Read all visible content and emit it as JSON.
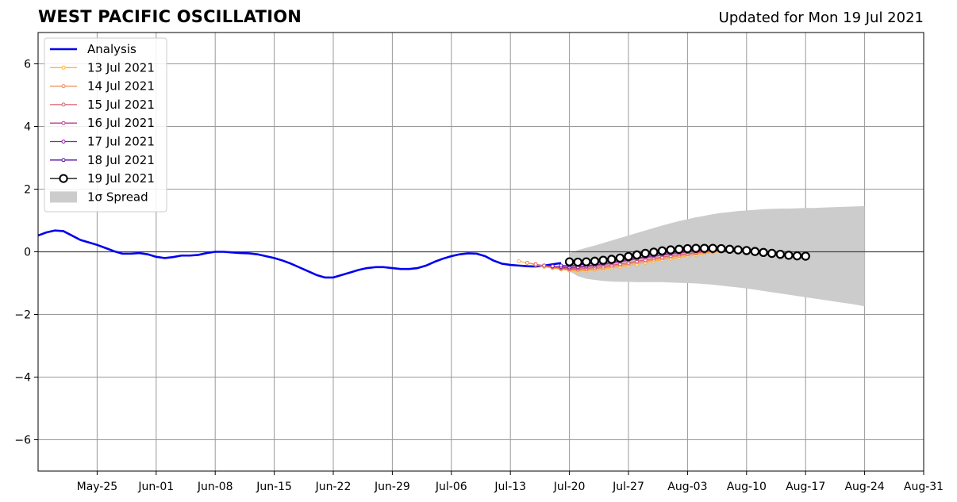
{
  "header": {
    "title": "WEST PACIFIC OSCILLATION",
    "subtitle": "Updated for Mon 19 Jul 2021"
  },
  "colors": {
    "analysis": "#0000ee",
    "spread": "#cccccc",
    "grid": "#999999",
    "forecasts": [
      "#fdb342",
      "#f3874a",
      "#dc5c6a",
      "#b93f8e",
      "#8b1fa3",
      "#5a07a2",
      "#000000"
    ]
  },
  "chart_data": {
    "type": "line",
    "title": "WEST PACIFIC OSCILLATION",
    "xlim": [
      "2021-05-18",
      "2021-08-31"
    ],
    "ylim": [
      -7,
      7
    ],
    "x_tick_labels": [
      "May-25",
      "Jun-01",
      "Jun-08",
      "Jun-15",
      "Jun-22",
      "Jun-29",
      "Jul-06",
      "Jul-13",
      "Jul-20",
      "Jul-27",
      "Aug-03",
      "Aug-10",
      "Aug-17",
      "Aug-24",
      "Aug-31"
    ],
    "x_tick_dates": [
      "2021-05-25",
      "2021-06-01",
      "2021-06-08",
      "2021-06-15",
      "2021-06-22",
      "2021-06-29",
      "2021-07-06",
      "2021-07-13",
      "2021-07-20",
      "2021-07-27",
      "2021-08-03",
      "2021-08-10",
      "2021-08-17",
      "2021-08-24",
      "2021-08-31"
    ],
    "y_ticks": [
      -6,
      -4,
      -2,
      0,
      2,
      4,
      6
    ],
    "y_tick_labels": [
      "−6",
      "−4",
      "−2",
      "0",
      "2",
      "4",
      "6"
    ],
    "grid": true,
    "legend_position": "top-left",
    "legend": [
      "Analysis",
      "13 Jul 2021",
      "14 Jul 2021",
      "15 Jul 2021",
      "16 Jul 2021",
      "17 Jul 2021",
      "18 Jul 2021",
      "19 Jul 2021",
      "1σ Spread"
    ],
    "analysis": {
      "name": "Analysis",
      "start": "2021-05-18",
      "values": [
        0.52,
        0.62,
        0.68,
        0.66,
        0.52,
        0.38,
        0.3,
        0.22,
        0.12,
        0.02,
        -0.06,
        -0.06,
        -0.04,
        -0.08,
        -0.16,
        -0.2,
        -0.17,
        -0.12,
        -0.12,
        -0.1,
        -0.04,
        0.0,
        0.0,
        -0.02,
        -0.04,
        -0.05,
        -0.08,
        -0.14,
        -0.2,
        -0.28,
        -0.38,
        -0.5,
        -0.62,
        -0.74,
        -0.82,
        -0.82,
        -0.74,
        -0.66,
        -0.58,
        -0.52,
        -0.49,
        -0.49,
        -0.52,
        -0.55,
        -0.55,
        -0.52,
        -0.44,
        -0.32,
        -0.22,
        -0.14,
        -0.08,
        -0.05,
        -0.06,
        -0.14,
        -0.28,
        -0.38,
        -0.42,
        -0.44,
        -0.46,
        -0.47,
        -0.44,
        -0.4,
        -0.36
      ]
    },
    "forecasts": [
      {
        "name": "13 Jul 2021",
        "start": "2021-07-14",
        "values": [
          -0.3,
          -0.35,
          -0.42,
          -0.48,
          -0.52,
          -0.56,
          -0.6,
          -0.62,
          -0.6,
          -0.58,
          -0.55,
          -0.52,
          -0.48,
          -0.44,
          -0.4,
          -0.35,
          -0.3,
          -0.26,
          -0.22,
          -0.18,
          -0.14,
          -0.1,
          -0.06,
          -0.02,
          0.0
        ]
      },
      {
        "name": "14 Jul 2021",
        "start": "2021-07-15",
        "values": [
          -0.35,
          -0.4,
          -0.45,
          -0.5,
          -0.54,
          -0.57,
          -0.58,
          -0.56,
          -0.54,
          -0.51,
          -0.47,
          -0.43,
          -0.39,
          -0.34,
          -0.3,
          -0.25,
          -0.21,
          -0.17,
          -0.13,
          -0.09,
          -0.05,
          -0.02,
          0.0,
          0.02
        ]
      },
      {
        "name": "15 Jul 2021",
        "start": "2021-07-16",
        "values": [
          -0.4,
          -0.44,
          -0.48,
          -0.52,
          -0.55,
          -0.55,
          -0.53,
          -0.5,
          -0.47,
          -0.43,
          -0.39,
          -0.35,
          -0.3,
          -0.26,
          -0.21,
          -0.17,
          -0.13,
          -0.09,
          -0.06,
          -0.03,
          0.0,
          0.02,
          0.03
        ]
      },
      {
        "name": "16 Jul 2021",
        "start": "2021-07-17",
        "values": [
          -0.44,
          -0.47,
          -0.5,
          -0.52,
          -0.51,
          -0.48,
          -0.45,
          -0.41,
          -0.37,
          -0.32,
          -0.28,
          -0.23,
          -0.19,
          -0.15,
          -0.11,
          -0.07,
          -0.04,
          -0.01,
          0.01,
          0.03,
          0.04,
          0.05
        ]
      },
      {
        "name": "17 Jul 2021",
        "start": "2021-07-18",
        "values": [
          -0.46,
          -0.48,
          -0.49,
          -0.48,
          -0.45,
          -0.42,
          -0.38,
          -0.34,
          -0.29,
          -0.25,
          -0.2,
          -0.16,
          -0.12,
          -0.08,
          -0.05,
          -0.02,
          0.01,
          0.03,
          0.05,
          0.06,
          0.07
        ]
      },
      {
        "name": "18 Jul 2021",
        "start": "2021-07-19",
        "values": [
          -0.44,
          -0.44,
          -0.42,
          -0.39,
          -0.35,
          -0.31,
          -0.27,
          -0.22,
          -0.18,
          -0.14,
          -0.1,
          -0.06,
          -0.03,
          0.0,
          0.02,
          0.04,
          0.06,
          0.07,
          0.08,
          0.09
        ]
      },
      {
        "name": "19 Jul 2021",
        "start": "2021-07-20",
        "values": [
          -0.32,
          -0.33,
          -0.32,
          -0.3,
          -0.27,
          -0.24,
          -0.2,
          -0.15,
          -0.1,
          -0.05,
          -0.01,
          0.03,
          0.06,
          0.08,
          0.1,
          0.11,
          0.11,
          0.11,
          0.1,
          0.08,
          0.06,
          0.04,
          0.01,
          -0.02,
          -0.05,
          -0.08,
          -0.11,
          -0.13,
          -0.14
        ]
      }
    ],
    "spread": {
      "name": "1σ Spread",
      "start": "2021-07-20",
      "upper": [
        -0.05,
        0.05,
        0.13,
        0.2,
        0.28,
        0.36,
        0.44,
        0.52,
        0.6,
        0.68,
        0.76,
        0.84,
        0.91,
        0.98,
        1.04,
        1.1,
        1.15,
        1.2,
        1.24,
        1.27,
        1.3,
        1.32,
        1.34,
        1.36,
        1.37,
        1.38,
        1.38,
        1.39,
        1.4,
        1.4,
        1.41,
        1.42,
        1.43,
        1.44,
        1.45,
        1.46
      ],
      "lower": [
        -0.62,
        -0.78,
        -0.86,
        -0.9,
        -0.93,
        -0.95,
        -0.96,
        -0.96,
        -0.97,
        -0.97,
        -0.97,
        -0.97,
        -0.98,
        -0.99,
        -1.0,
        -1.01,
        -1.03,
        -1.05,
        -1.08,
        -1.11,
        -1.14,
        -1.17,
        -1.21,
        -1.25,
        -1.29,
        -1.33,
        -1.37,
        -1.41,
        -1.45,
        -1.49,
        -1.53,
        -1.57,
        -1.61,
        -1.65,
        -1.69,
        -1.74
      ]
    }
  }
}
